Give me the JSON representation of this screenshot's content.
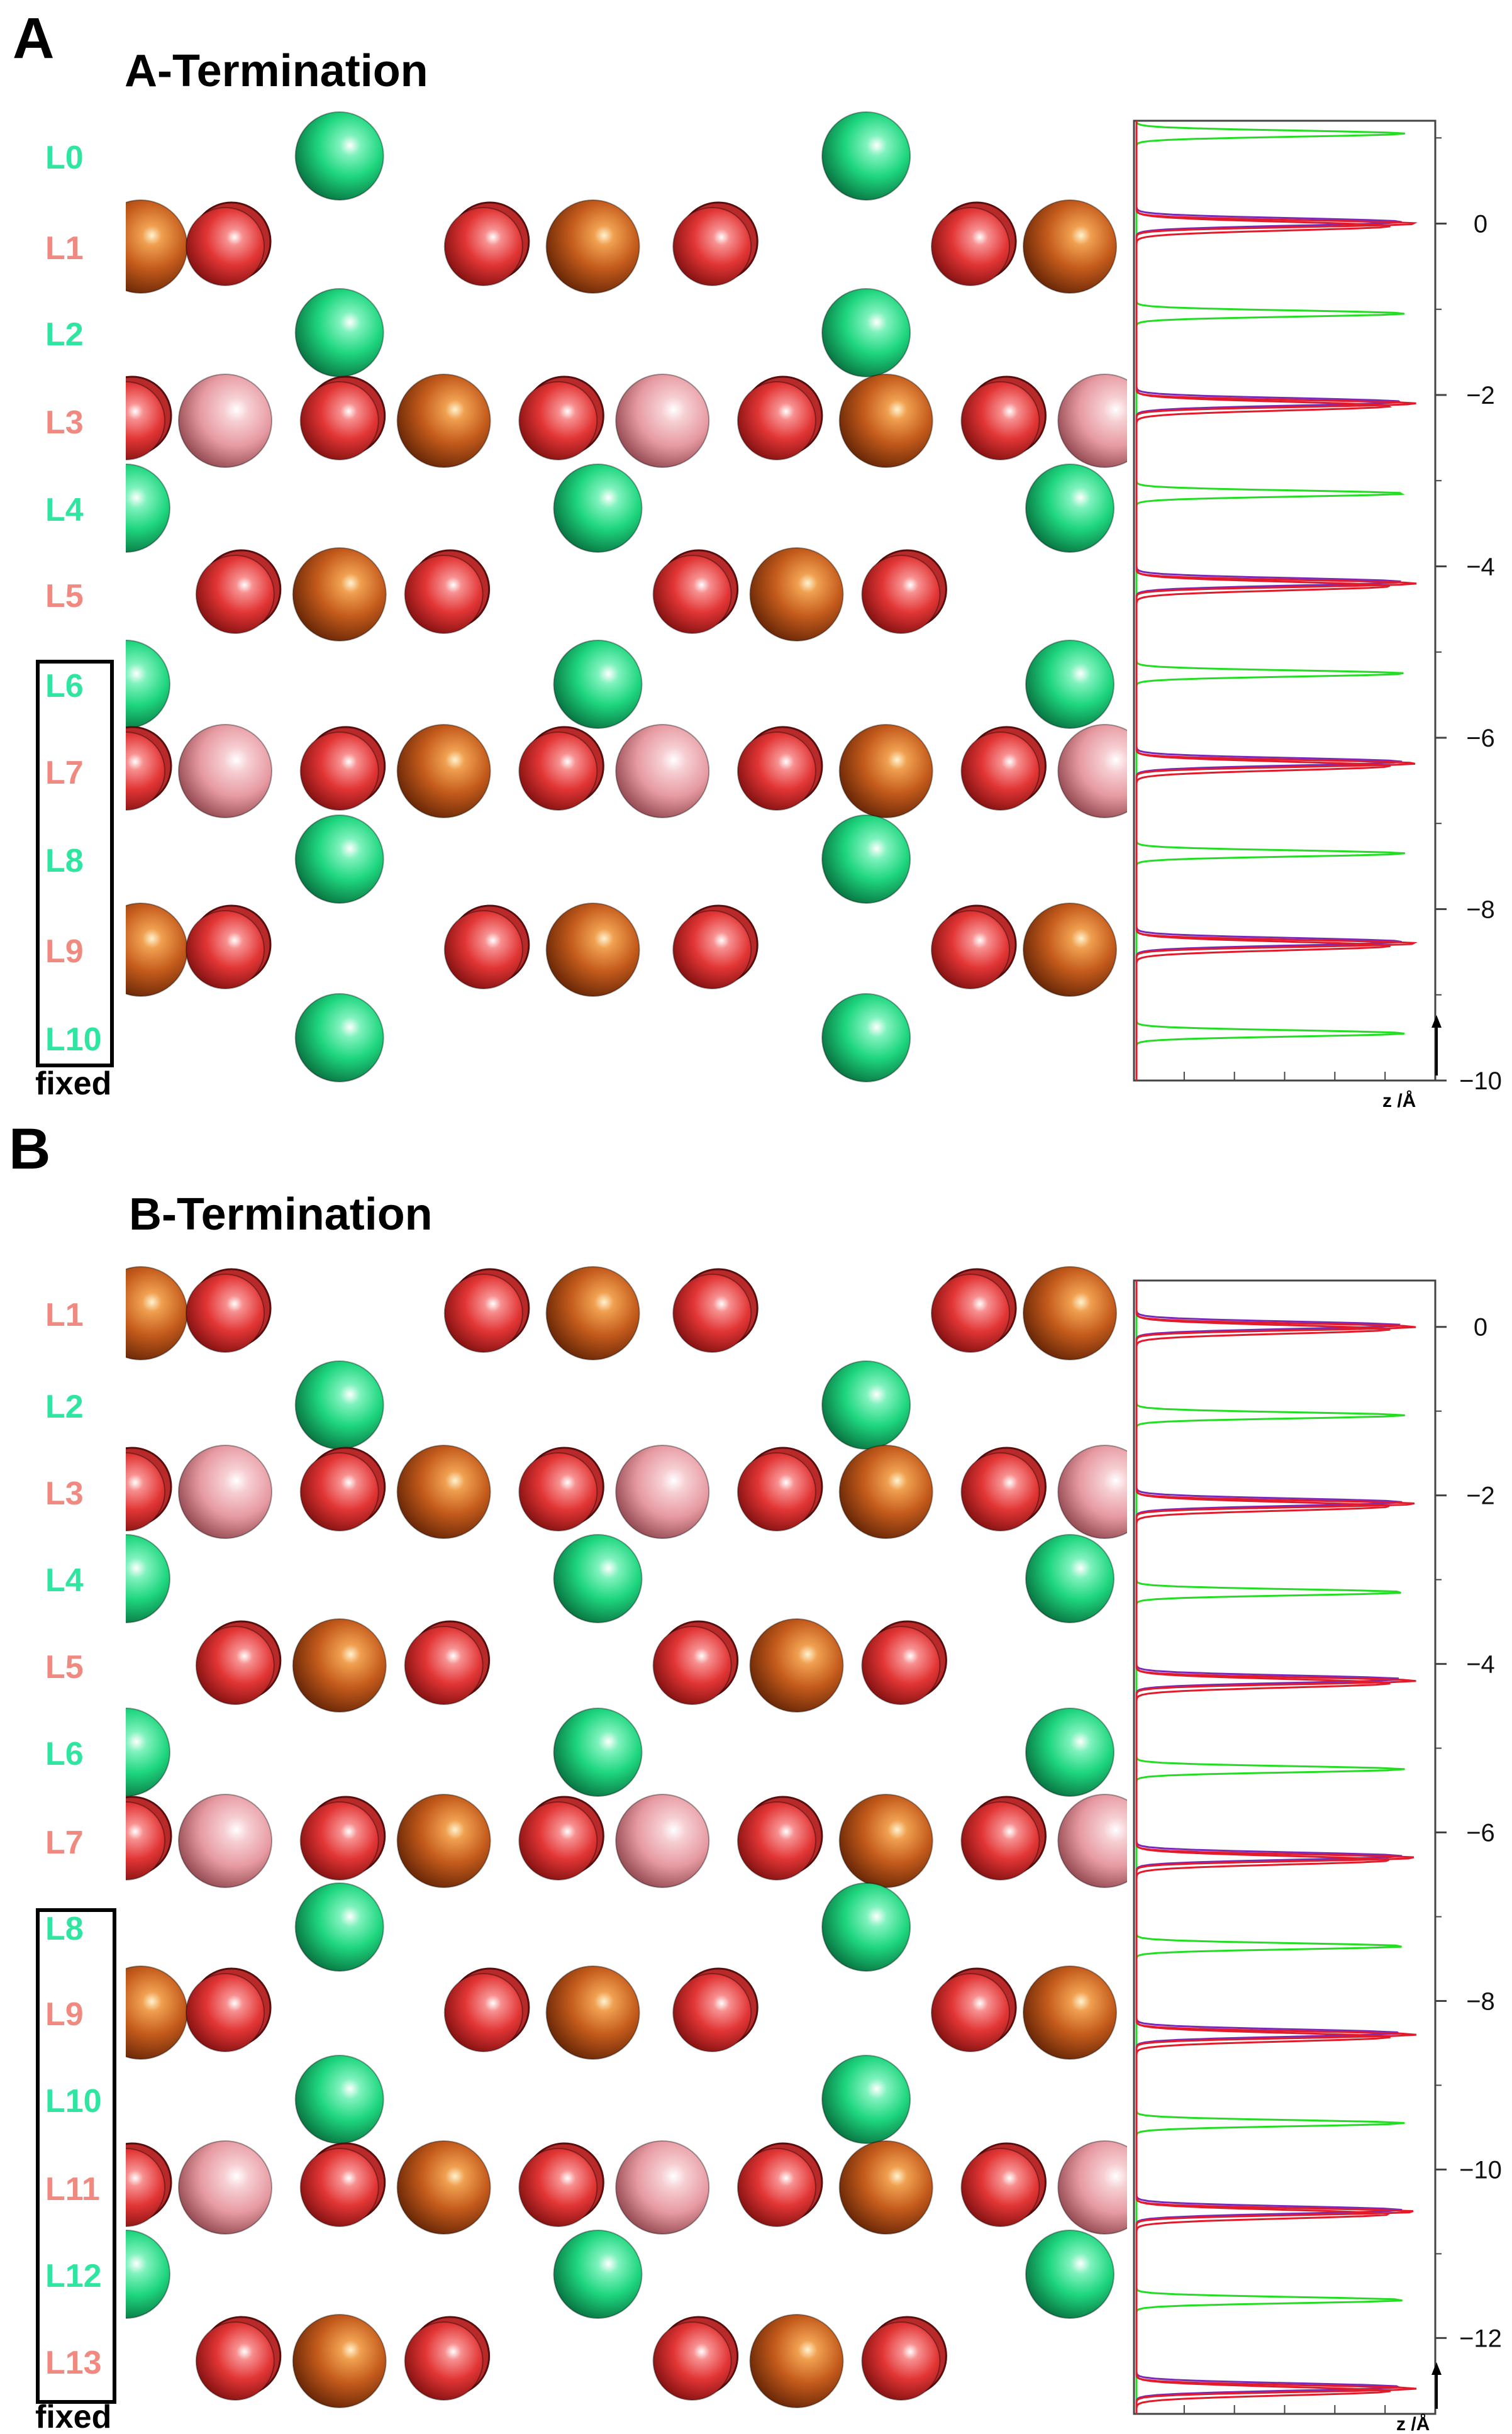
{
  "colors": {
    "green_layer_label": "#2ee6a0",
    "pink_layer_label": "#f08a80",
    "green_curve": "#22dd22",
    "red_curve": "#e21a2a",
    "purple_curve": "#7a2ab8",
    "sphere_green": "#1ed67e",
    "sphere_red": "#e23535",
    "sphere_orange": "#c45b1c",
    "sphere_pink": "#e79aa2"
  },
  "panels": [
    {
      "letter": "A",
      "title": "A-Termination",
      "fixed_label": "fixed",
      "z_label": "z /Å",
      "layers": [
        {
          "label": "L0",
          "kind": "green"
        },
        {
          "label": "L1",
          "kind": "pink"
        },
        {
          "label": "L2",
          "kind": "green"
        },
        {
          "label": "L3",
          "kind": "pink"
        },
        {
          "label": "L4",
          "kind": "green"
        },
        {
          "label": "L5",
          "kind": "pink"
        },
        {
          "label": "L6",
          "kind": "green"
        },
        {
          "label": "L7",
          "kind": "pink"
        },
        {
          "label": "L8",
          "kind": "green"
        },
        {
          "label": "L9",
          "kind": "pink"
        },
        {
          "label": "L10",
          "kind": "green"
        }
      ],
      "fixed_layers": [
        "L6",
        "L7",
        "L8",
        "L9",
        "L10"
      ],
      "chart_data": {
        "type": "line",
        "ylabel": "z /Å",
        "ylim": [
          -10,
          1.2
        ],
        "yticks": [
          0,
          -2,
          -4,
          -6,
          -8,
          -10
        ],
        "peaks_green": [
          1.05,
          -1.05,
          -3.15,
          -5.25,
          -7.35,
          -9.45
        ],
        "peaks_red": [
          0,
          -2.1,
          -4.2,
          -6.3,
          -8.4
        ]
      }
    },
    {
      "letter": "B",
      "title": "B-Termination",
      "fixed_label": "fixed",
      "z_label": "z /Å",
      "layers": [
        {
          "label": "L1",
          "kind": "pink"
        },
        {
          "label": "L2",
          "kind": "green"
        },
        {
          "label": "L3",
          "kind": "pink"
        },
        {
          "label": "L4",
          "kind": "green"
        },
        {
          "label": "L5",
          "kind": "pink"
        },
        {
          "label": "L6",
          "kind": "green"
        },
        {
          "label": "L7",
          "kind": "pink"
        },
        {
          "label": "L8",
          "kind": "green"
        },
        {
          "label": "L9",
          "kind": "pink"
        },
        {
          "label": "L10",
          "kind": "green"
        },
        {
          "label": "L11",
          "kind": "pink"
        },
        {
          "label": "L12",
          "kind": "green"
        },
        {
          "label": "L13",
          "kind": "pink"
        }
      ],
      "fixed_layers": [
        "L8",
        "L9",
        "L10",
        "L11",
        "L12",
        "L13"
      ],
      "chart_data": {
        "type": "line",
        "ylabel": "z /Å",
        "ylim": [
          -12.9,
          0.55
        ],
        "yticks": [
          0,
          -2,
          -4,
          -6,
          -8,
          -10,
          -12
        ],
        "peaks_green": [
          -1.05,
          -3.15,
          -5.25,
          -7.35,
          -9.45,
          -11.55
        ],
        "peaks_red": [
          0,
          -2.1,
          -4.2,
          -6.3,
          -8.4,
          -10.5,
          -12.6
        ]
      }
    }
  ],
  "atom_rows": {
    "pinkA": [
      [
        "o",
        0.03
      ],
      [
        "r",
        0.2
      ],
      [
        "r",
        0.72
      ],
      [
        "o",
        0.94
      ],
      [
        "r",
        1.18
      ],
      [
        "r",
        1.7
      ],
      [
        "o",
        1.9
      ]
    ],
    "pinkB": [
      [
        "r",
        0.0
      ],
      [
        "p",
        0.2
      ],
      [
        "r",
        0.43
      ],
      [
        "o",
        0.64
      ],
      [
        "r",
        0.87
      ],
      [
        "p",
        1.08
      ],
      [
        "r",
        1.31
      ],
      [
        "o",
        1.53
      ],
      [
        "r",
        1.76
      ],
      [
        "p",
        1.97
      ]
    ],
    "pinkC": [
      [
        "r",
        0.22
      ],
      [
        "o",
        0.43
      ],
      [
        "r",
        0.64
      ],
      [
        "r",
        1.14
      ],
      [
        "o",
        1.35
      ],
      [
        "r",
        1.56
      ]
    ],
    "greenTop": [
      [
        "g",
        0.43
      ],
      [
        "g",
        1.49
      ]
    ],
    "greenMid": [
      [
        "g",
        0.0
      ],
      [
        "g",
        0.95
      ],
      [
        "g",
        1.9
      ]
    ]
  }
}
